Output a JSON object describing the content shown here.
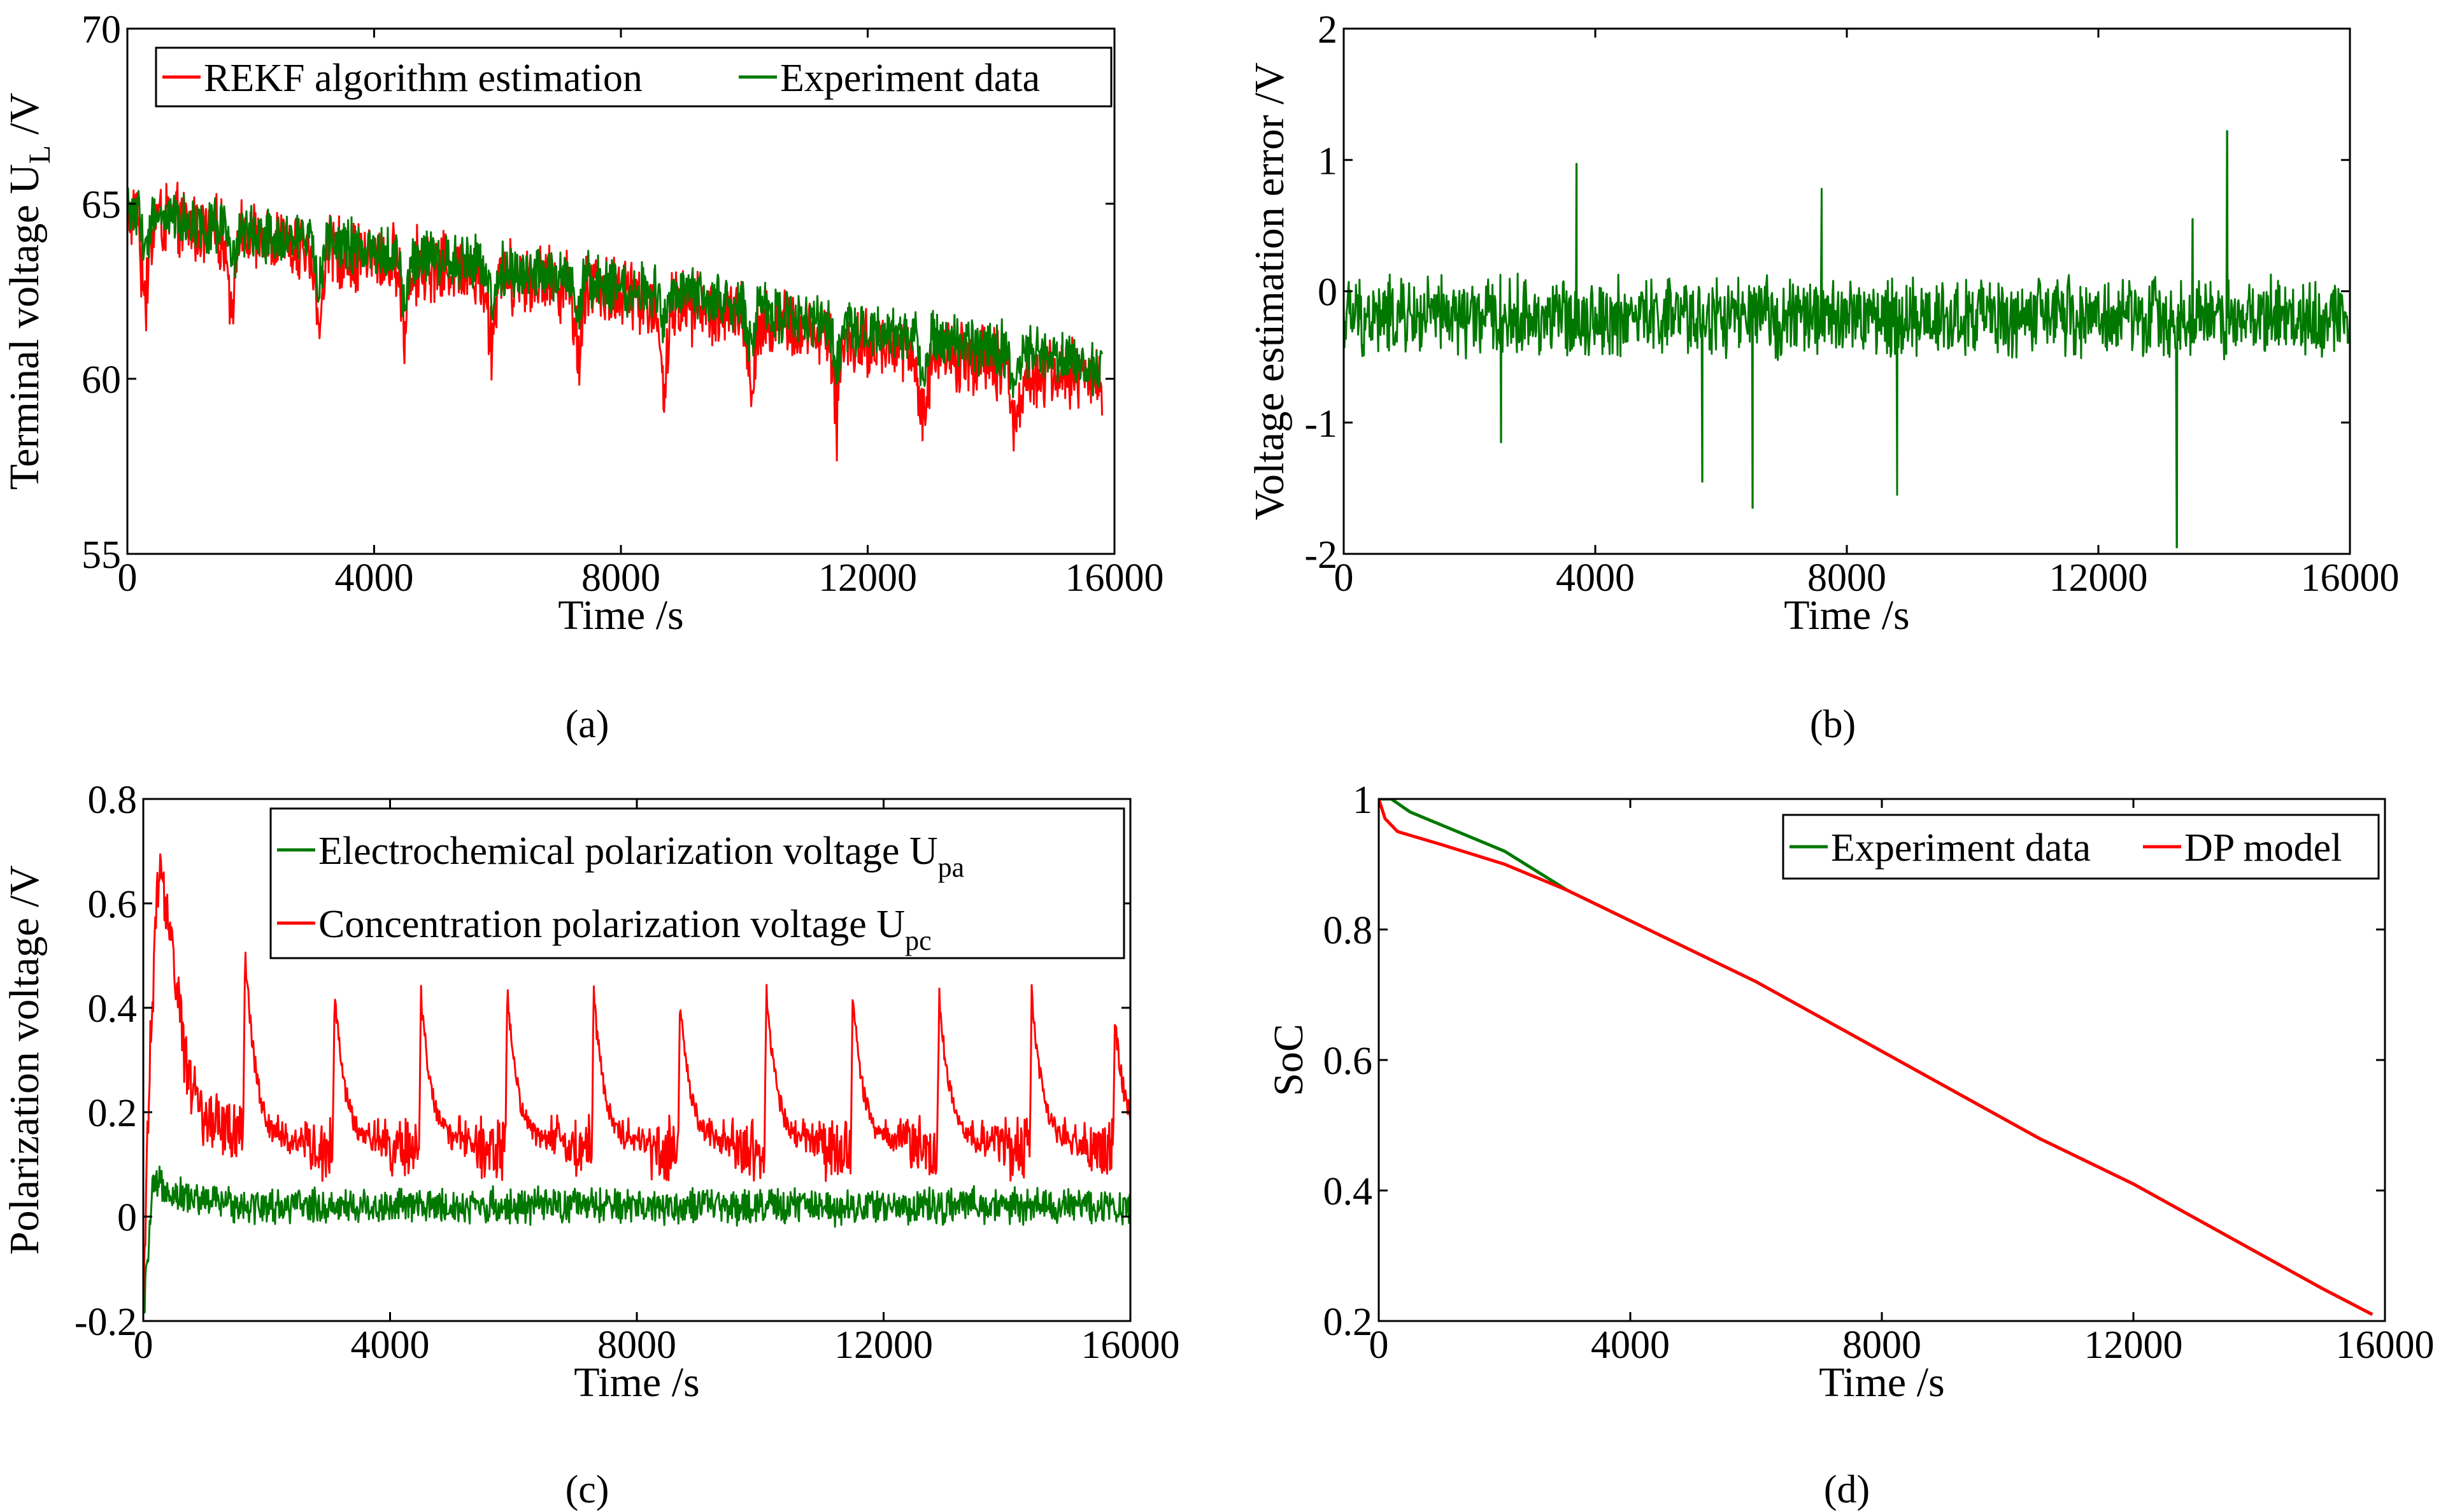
{
  "figure_captions": [
    "(a)",
    "(b)",
    "(c)",
    "(d)"
  ],
  "colors": {
    "red": "#ff0000",
    "green": "#007800",
    "axis": "#000000"
  },
  "chart_data": [
    {
      "id": "a",
      "type": "line",
      "caption": "(a)",
      "xlabel": "Time /s",
      "ylabel": "Terminal voltage  U",
      "ylabel_sub": "L",
      "ylabel_unit": " /V",
      "xlim": [
        0,
        16000
      ],
      "ylim": [
        55,
        70
      ],
      "xticks": [
        0,
        4000,
        8000,
        12000,
        16000
      ],
      "yticks": [
        55,
        60,
        65,
        70
      ],
      "legend": {
        "placement": "top-left",
        "entries": [
          {
            "label": "REKF algorithm estimation",
            "color": "#ff0000"
          },
          {
            "label": "Experiment data",
            "color": "#007800"
          }
        ]
      },
      "series": [
        {
          "name": "REKF algorithm estimation",
          "color": "#ff0000",
          "x": [
            0,
            500,
            1500,
            3000,
            4500,
            6000,
            7500,
            9000,
            10500,
            12000,
            13500,
            15000,
            15800
          ],
          "values": [
            64.6,
            64.6,
            64.1,
            63.7,
            63.3,
            63.0,
            62.6,
            62.1,
            61.6,
            61.0,
            60.6,
            60.2,
            60.0
          ],
          "noise_amp": 1.2,
          "dips": [
            300,
            1700,
            3100,
            4500,
            5900,
            7300,
            8700,
            10100,
            11500,
            12900,
            14400
          ],
          "dip_depth": 2.6,
          "dip_width": 140
        },
        {
          "name": "Experiment data",
          "color": "#007800",
          "x": [
            0,
            500,
            1500,
            3000,
            4500,
            6000,
            7500,
            9000,
            10500,
            12000,
            13500,
            15000,
            15800
          ],
          "values": [
            64.8,
            64.7,
            64.3,
            63.9,
            63.5,
            63.2,
            62.8,
            62.4,
            61.9,
            61.4,
            61.0,
            60.6,
            60.3
          ],
          "noise_amp": 0.9,
          "dips": [
            300,
            1700,
            3100,
            4500,
            5900,
            7300,
            8700,
            10100,
            11500,
            12900,
            14400
          ],
          "dip_depth": 1.5,
          "dip_width": 120
        }
      ]
    },
    {
      "id": "b",
      "type": "line",
      "caption": "(b)",
      "xlabel": "Time /s",
      "ylabel": "Voltage estimation error /V",
      "xlim": [
        0,
        16000
      ],
      "ylim": [
        -2,
        2
      ],
      "xticks": [
        0,
        4000,
        8000,
        12000,
        16000
      ],
      "yticks": [
        -2,
        -1,
        0,
        1,
        2
      ],
      "series": [
        {
          "name": "Voltage estimation error",
          "color": "#007800",
          "x": [
            0,
            16000
          ],
          "values": [
            -0.2,
            -0.2
          ],
          "noise_amp": 0.35,
          "spikes": [
            [
              3700,
              0.97
            ],
            [
              7600,
              0.78
            ],
            [
              13500,
              0.55
            ],
            [
              14050,
              1.22
            ],
            [
              13250,
              -1.95
            ],
            [
              6500,
              -1.65
            ],
            [
              5700,
              -1.45
            ],
            [
              8800,
              -1.55
            ],
            [
              2500,
              -1.15
            ]
          ]
        }
      ]
    },
    {
      "id": "c",
      "type": "line",
      "caption": "(c)",
      "xlabel": "Time /s",
      "ylabel": "Polarization voltage /V",
      "xlim": [
        0,
        16000
      ],
      "ylim": [
        -0.2,
        0.8
      ],
      "xticks": [
        0,
        4000,
        8000,
        12000,
        16000
      ],
      "yticks": [
        -0.2,
        0,
        0.2,
        0.4,
        0.6,
        0.8
      ],
      "ytick_labels": [
        "-0.2",
        "0",
        "0.2",
        "0.4",
        "0.6",
        "0.8"
      ],
      "legend": {
        "placement": "top-right",
        "entries": [
          {
            "label": "Electrochemical polarization voltage  U",
            "sub": "pa",
            "color": "#007800"
          },
          {
            "label": "Concentration polarization voltage  U",
            "sub": "pc",
            "color": "#ff0000"
          }
        ]
      },
      "series": [
        {
          "name": "Electrochemical polarization voltage",
          "color": "#007800",
          "x": [
            0,
            150,
            300,
            600,
            1000,
            2000,
            16000
          ],
          "values": [
            -0.2,
            0.05,
            0.06,
            0.04,
            0.03,
            0.02,
            0.02
          ],
          "noise_amp": 0.04
        },
        {
          "name": "Concentration polarization voltage",
          "color": "#ff0000",
          "x": [
            0,
            100,
            250,
            400,
            700,
            1000,
            1500,
            2000,
            16000
          ],
          "values": [
            -0.2,
            0.3,
            0.68,
            0.58,
            0.28,
            0.19,
            0.16,
            0.13,
            0.13
          ],
          "noise_amp": 0.07,
          "peaks": [
            [
              1650,
              0.51
            ],
            [
              3100,
              0.43
            ],
            [
              4500,
              0.43
            ],
            [
              5900,
              0.43
            ],
            [
              7300,
              0.43
            ],
            [
              8700,
              0.42
            ],
            [
              10100,
              0.43
            ],
            [
              11500,
              0.43
            ],
            [
              12900,
              0.43
            ],
            [
              14400,
              0.44
            ],
            [
              15750,
              0.38
            ]
          ]
        }
      ]
    },
    {
      "id": "d",
      "type": "line",
      "caption": "(d)",
      "xlabel": "Time /s",
      "ylabel": "SoC",
      "xlim": [
        0,
        16000
      ],
      "ylim": [
        0.2,
        1
      ],
      "xticks": [
        0,
        4000,
        8000,
        12000,
        16000
      ],
      "yticks": [
        0.2,
        0.4,
        0.6,
        0.8,
        1
      ],
      "ytick_labels": [
        "0.2",
        "0.4",
        "0.6",
        "0.8",
        "1"
      ],
      "legend": {
        "placement": "top-right",
        "entries": [
          {
            "label": "Experiment data",
            "color": "#007800"
          },
          {
            "label": "DP model",
            "color": "#ff0000"
          }
        ]
      },
      "series": [
        {
          "name": "Experiment data",
          "color": "#007800",
          "x": [
            0,
            200,
            500,
            1000,
            2000,
            3000,
            4500,
            6000,
            7500,
            9000,
            10500,
            12000,
            13500,
            15000,
            15800
          ],
          "values": [
            1.0,
            1.0,
            0.98,
            0.96,
            0.92,
            0.86,
            0.79,
            0.72,
            0.64,
            0.56,
            0.48,
            0.41,
            0.33,
            0.25,
            0.21
          ]
        },
        {
          "name": "DP model",
          "color": "#ff0000",
          "x": [
            0,
            100,
            300,
            1000,
            2000,
            3000,
            4500,
            6000,
            7500,
            9000,
            10500,
            12000,
            13500,
            15000,
            15800
          ],
          "values": [
            1.0,
            0.97,
            0.95,
            0.93,
            0.9,
            0.86,
            0.79,
            0.72,
            0.64,
            0.56,
            0.48,
            0.41,
            0.33,
            0.25,
            0.21
          ]
        }
      ]
    }
  ]
}
